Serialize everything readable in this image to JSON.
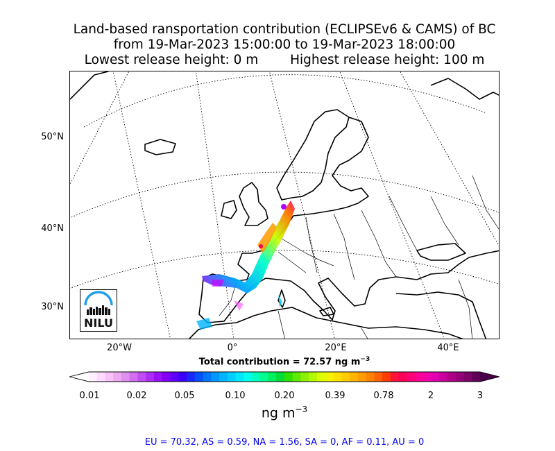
{
  "title": {
    "line1": "Land-based ransportation contribution (ECLIPSEv6 & CAMS) of BC",
    "line2": "from 19-Mar-2023 15:00:00 to 19-Mar-2023 18:00:00",
    "line3_left": "Lowest release height: 0 m",
    "line3_right": "Highest release height: 100 m"
  },
  "map": {
    "lat_labels": [
      "50°N",
      "40°N",
      "30°N"
    ],
    "lon_labels": [
      "20°W",
      "0°",
      "20°E",
      "40°E"
    ]
  },
  "logo": {
    "text": "NILU"
  },
  "total_contribution": "Total contribution = 72.57 ng m",
  "total_contribution_sup": "−3",
  "colorbar": {
    "ticks": [
      "0.01",
      "0.02",
      "0.05",
      "0.10",
      "0.20",
      "0.39",
      "0.78",
      "2",
      "3"
    ],
    "units": "ng m",
    "units_sup": "−3"
  },
  "regions": "EU = 70.32,  AS = 0.59,  NA = 1.56,  SA = 0,  AF = 0.11,  AU = 0"
}
